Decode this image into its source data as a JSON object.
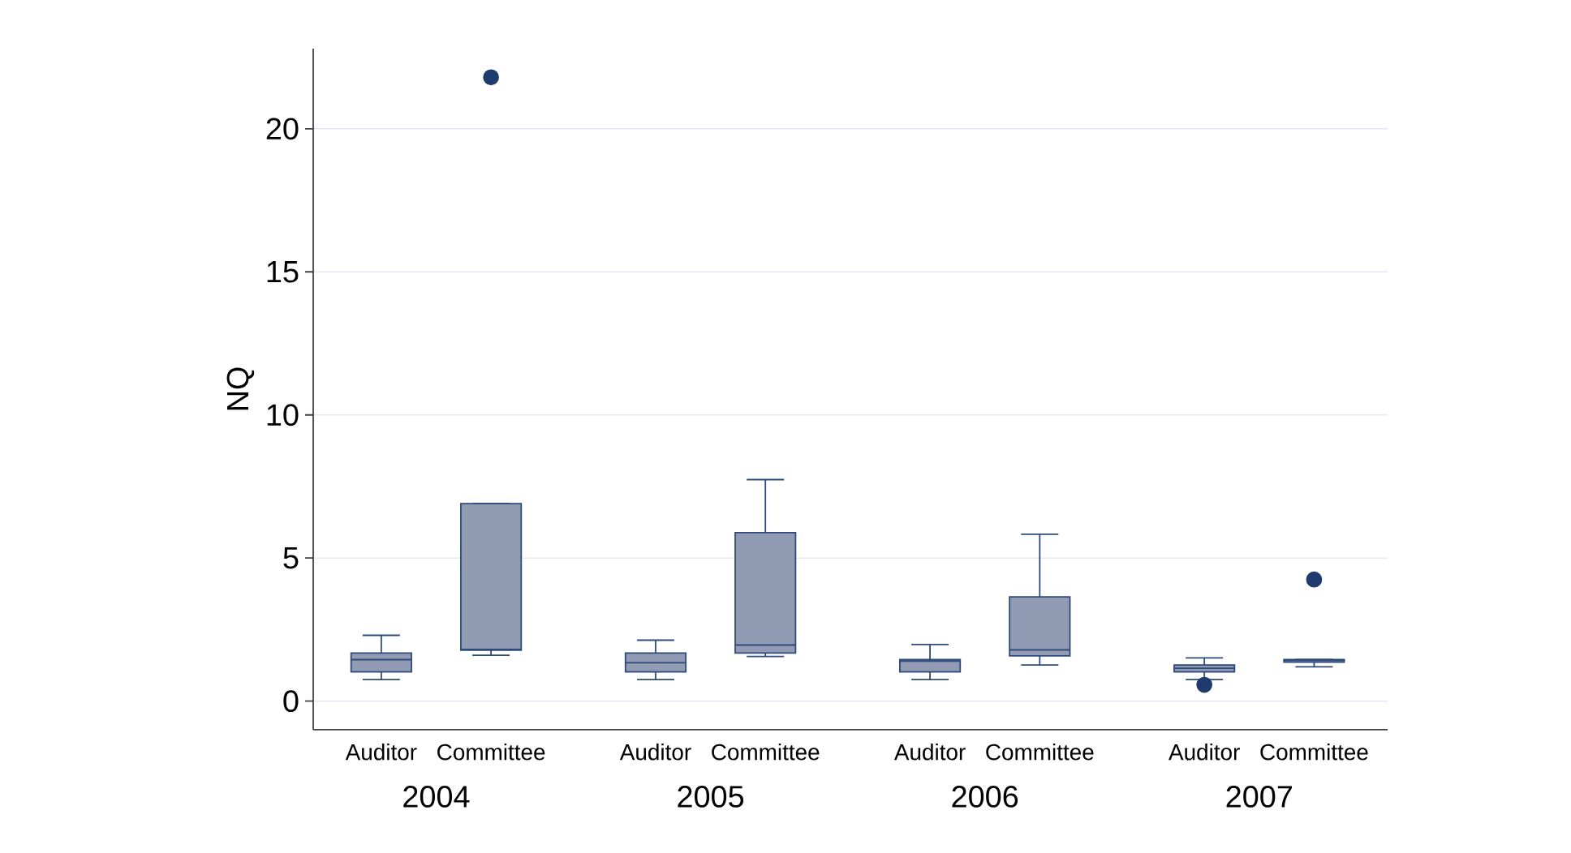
{
  "chart_data": {
    "type": "box",
    "ylabel": "NQ",
    "categories": [
      "Auditor",
      "Committee",
      "Auditor",
      "Committee",
      "Auditor",
      "Committee",
      "Auditor",
      "Committee"
    ],
    "annotations": [
      "2004",
      "2005",
      "2006",
      "2007"
    ],
    "series": [
      {
        "color": "#919bb3",
        "boxes": [
          {
            "low": 0.75,
            "q1": 1.02,
            "median": 1.45,
            "q3": 1.68,
            "high": 2.3
          },
          {
            "low": 1.6,
            "q1": 1.78,
            "median": 1.81,
            "q3": 6.9,
            "high": 6.9,
            "outliers": [
              21.8
            ]
          },
          {
            "low": 0.75,
            "q1": 1.02,
            "median": 1.34,
            "q3": 1.68,
            "high": 2.13
          },
          {
            "low": 1.56,
            "q1": 1.68,
            "median": 1.96,
            "q3": 5.89,
            "high": 7.74
          },
          {
            "low": 0.75,
            "q1": 1.02,
            "median": 1.4,
            "q3": 1.45,
            "high": 1.98
          },
          {
            "low": 1.26,
            "q1": 1.58,
            "median": 1.79,
            "q3": 3.64,
            "high": 5.83
          },
          {
            "low": 0.75,
            "q1": 1.02,
            "median": 1.15,
            "q3": 1.26,
            "high": 1.51,
            "outliers": [
              0.57
            ]
          },
          {
            "low": 1.2,
            "q1": 1.36,
            "median": 1.42,
            "q3": 1.45,
            "high": 1.45,
            "outliers": [
              4.25
            ]
          }
        ]
      }
    ],
    "ylim": [
      -1,
      22.8
    ],
    "yticks": [
      0,
      5,
      10,
      15,
      20
    ],
    "grid": "y"
  }
}
